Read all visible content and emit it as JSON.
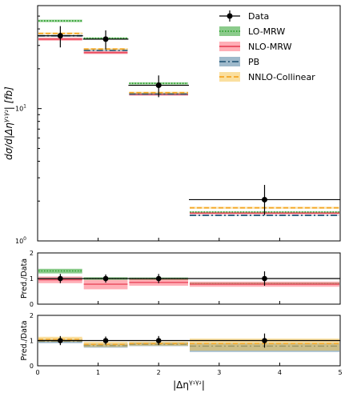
{
  "chart_data": [
    {
      "panel": "main",
      "type": "line",
      "ylabel": "dσ/d|Δη^{γ1γ2}| [fb]",
      "yscale": "log",
      "ylim": [
        1,
        60
      ],
      "xlim": [
        0,
        5
      ],
      "y_ticks": [
        {
          "value": 1,
          "base": "10",
          "exp": "0"
        },
        {
          "value": 10,
          "base": "10",
          "exp": "1"
        }
      ],
      "bins": [
        [
          0,
          0.75
        ],
        [
          0.75,
          1.5
        ],
        [
          1.5,
          2.5
        ],
        [
          2.5,
          5
        ]
      ],
      "data": {
        "name": "Data",
        "x": [
          0.375,
          1.125,
          2.0,
          3.75
        ],
        "y": [
          35.5,
          33.5,
          15.0,
          2.05
        ],
        "yerr_low": [
          6.5,
          5.5,
          2.8,
          0.48
        ],
        "yerr_high": [
          6.5,
          5.5,
          2.8,
          0.6
        ]
      },
      "series": [
        {
          "name": "LO-MRW",
          "style": "dotted",
          "color": "#2ca02c",
          "band": "#2ca02c",
          "values": [
            46,
            34,
            15.5,
            1.65
          ],
          "band_low": [
            45,
            33.5,
            15.2,
            1.63
          ],
          "band_high": [
            47,
            34.5,
            15.8,
            1.67
          ]
        },
        {
          "name": "NLO-MRW",
          "style": "solid",
          "color": "#e8485c",
          "band": "#ff6b7a",
          "values": [
            33.5,
            26.5,
            12.8,
            1.62
          ],
          "band_low": [
            32.5,
            25.8,
            12.5,
            1.6
          ],
          "band_high": [
            34.5,
            27.2,
            13.1,
            1.64
          ]
        },
        {
          "name": "PB",
          "style": "dashdot",
          "color": "#2f5f7f",
          "band": "#4f7fa0",
          "values": [
            35.5,
            27.5,
            12.9,
            1.56
          ],
          "band_low": [
            35,
            27.2,
            12.7,
            1.55
          ],
          "band_high": [
            36,
            27.8,
            13.1,
            1.57
          ]
        },
        {
          "name": "NNLO-Collinear",
          "style": "dashed",
          "color": "#f5a623",
          "band": "#f5c451",
          "values": [
            37,
            28.2,
            13.2,
            1.78
          ],
          "band_low": [
            36.4,
            27.8,
            13.0,
            1.75
          ],
          "band_high": [
            37.6,
            28.6,
            13.4,
            1.81
          ]
        }
      ],
      "legend": {
        "placement": "top-right",
        "entries": [
          "Data",
          "LO-MRW",
          "NLO-MRW",
          "PB",
          "NNLO-Collinear"
        ]
      }
    },
    {
      "panel": "ratio-mrw",
      "type": "line",
      "ylabel": "Pred./Data",
      "ylim": [
        0,
        2
      ],
      "y_ticks": [
        "0",
        "1",
        "2"
      ],
      "data": {
        "y": [
          1,
          1,
          1,
          1
        ],
        "yerr": [
          0.18,
          0.16,
          0.18,
          0.28
        ]
      },
      "series": [
        {
          "name": "LO-MRW",
          "values": [
            1.3,
            1.0,
            1.0,
            0.8
          ],
          "band_low": [
            1.2,
            0.95,
            0.94,
            0.76
          ],
          "band_high": [
            1.38,
            1.05,
            1.04,
            0.84
          ]
        },
        {
          "name": "NLO-MRW",
          "values": [
            0.95,
            0.78,
            0.85,
            0.78
          ],
          "band_low": [
            0.82,
            0.58,
            0.72,
            0.68
          ],
          "band_high": [
            1.08,
            0.95,
            0.98,
            0.88
          ]
        }
      ]
    },
    {
      "panel": "ratio-pb",
      "type": "line",
      "ylabel": "Pred./Data",
      "ylabel_display": "Pred./Data",
      "xlabel": "|Δη^{γ1γ2}|",
      "ylim": [
        0,
        2
      ],
      "y_ticks": [
        "0",
        "1",
        "2"
      ],
      "x_ticks": [
        "0",
        "1",
        "2",
        "3",
        "4",
        "5"
      ],
      "data": {
        "y": [
          1,
          1,
          1,
          1
        ],
        "yerr": [
          0.18,
          0.16,
          0.18,
          0.28
        ]
      },
      "series": [
        {
          "name": "PB",
          "values": [
            0.97,
            0.8,
            0.85,
            0.78
          ],
          "band_low": [
            0.9,
            0.72,
            0.78,
            0.55
          ],
          "band_high": [
            1.05,
            0.88,
            0.92,
            0.9
          ]
        },
        {
          "name": "NNLO-Collinear",
          "values": [
            1.05,
            0.85,
            0.88,
            0.88
          ],
          "band_low": [
            0.95,
            0.75,
            0.8,
            0.6
          ],
          "band_high": [
            1.15,
            0.95,
            0.96,
            1.08
          ]
        }
      ]
    }
  ]
}
